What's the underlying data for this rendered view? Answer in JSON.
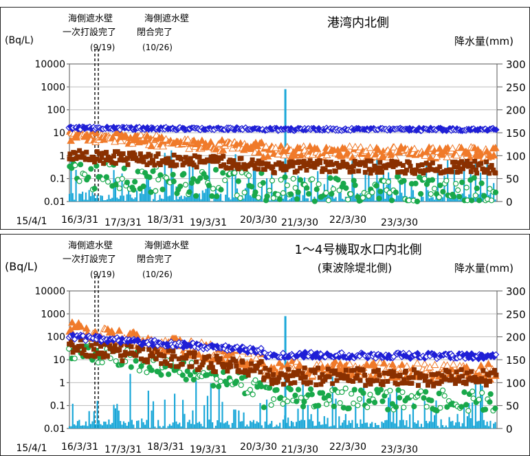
{
  "chart_data": [
    {
      "type": "scatter",
      "title": "港湾内北側",
      "subtitle": "",
      "ylabel": "(Bq/L)",
      "y2label": "降水量(mm)",
      "ylog": true,
      "ylim": [
        0.01,
        10000
      ],
      "y_ticks": [
        "10000",
        "1000",
        "100",
        "10",
        "1",
        "0.1",
        "0.01"
      ],
      "y2lim": [
        0,
        300
      ],
      "y2_ticks": [
        "300",
        "250",
        "200",
        "150",
        "100",
        "50",
        "0"
      ],
      "x_ticks": [
        "15/4/1",
        "16/3/31",
        "17/3/31",
        "18/3/31",
        "19/3/31",
        "20/3/30",
        "21/3/30",
        "22/3/30",
        "23/3/30"
      ],
      "annotations": [
        {
          "line1": "海側遮水壁",
          "line2": "一次打設完了",
          "date": "(9/19)"
        },
        {
          "line1": "海側遮水壁",
          "line2": "閉合完了",
          "date": "(10/26)"
        }
      ],
      "series": [
        {
          "key": "blue",
          "color": "#1f1fd6",
          "start": 16,
          "end": 14
        },
        {
          "key": "orange",
          "color": "#f07a2a",
          "start": 8,
          "end": 1.3
        },
        {
          "key": "brown",
          "color": "#8a3000",
          "start": 1.0,
          "end": 0.3
        },
        {
          "key": "green",
          "color": "#19a84a",
          "start": 0.15,
          "end": 0.03
        },
        {
          "key": "rain",
          "color": "#1aa7d8",
          "spike_date": "2019/10",
          "spike_value": 245
        }
      ]
    },
    {
      "type": "scatter",
      "title": "1～4号機取水口内北側",
      "subtitle": "(東波除堤北側)",
      "ylabel": "(Bq/L)",
      "y2label": "降水量(mm)",
      "ylog": true,
      "ylim": [
        0.01,
        10000
      ],
      "y_ticks": [
        "10000",
        "1000",
        "100",
        "10",
        "1",
        "0.1",
        "0.01"
      ],
      "y2lim": [
        0,
        300
      ],
      "y2_ticks": [
        "300",
        "250",
        "200",
        "150",
        "100",
        "50",
        "0"
      ],
      "x_ticks": [
        "15/4/1",
        "16/3/31",
        "17/3/31",
        "18/3/31",
        "19/3/31",
        "20/3/30",
        "21/3/30",
        "22/3/30",
        "23/3/30"
      ],
      "annotations": [
        {
          "line1": "海側遮水壁",
          "line2": "一次打設完了",
          "date": "(9/19)"
        },
        {
          "line1": "海側遮水壁",
          "line2": "閉合完了",
          "date": "(10/26)"
        }
      ],
      "series": [
        {
          "key": "blue",
          "color": "#1f1fd6",
          "start": 100,
          "end": 14
        },
        {
          "key": "orange",
          "color": "#f07a2a",
          "start": 200,
          "end": 3
        },
        {
          "key": "brown",
          "color": "#8a3000",
          "start": 40,
          "end": 1.5
        },
        {
          "key": "green",
          "color": "#19a84a",
          "start": 30,
          "end": 0.15
        },
        {
          "key": "rain",
          "color": "#1aa7d8",
          "spike_date": "2019/10",
          "spike_value": 245
        }
      ]
    }
  ]
}
